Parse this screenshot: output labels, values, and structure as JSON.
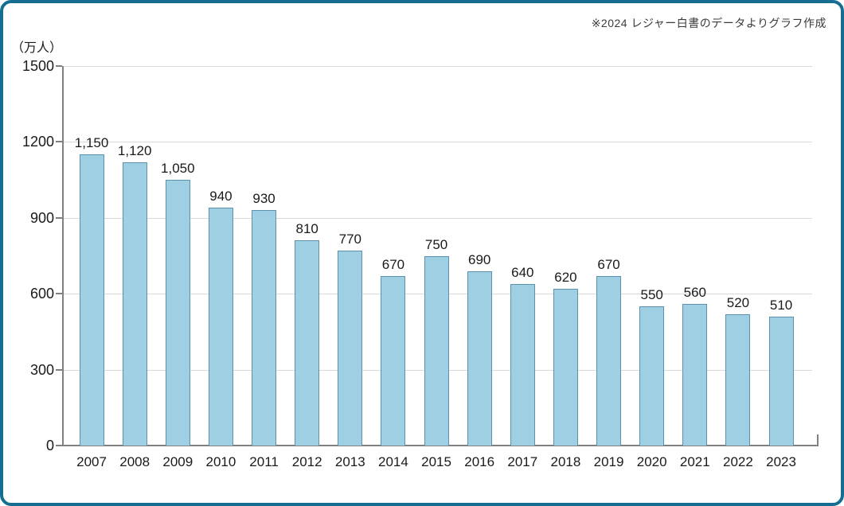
{
  "annotation": "※2024 レジャー白書のデータよりグラフ作成",
  "chart_data": {
    "type": "bar",
    "title": "",
    "unit_label": "（万人）",
    "categories": [
      "2007",
      "2008",
      "2009",
      "2010",
      "2011",
      "2012",
      "2013",
      "2014",
      "2015",
      "2016",
      "2017",
      "2018",
      "2019",
      "2020",
      "2021",
      "2022",
      "2023"
    ],
    "values": [
      1150,
      1120,
      1050,
      940,
      930,
      810,
      770,
      670,
      750,
      690,
      640,
      620,
      670,
      550,
      560,
      520,
      510
    ],
    "value_labels": [
      "1,150",
      "1,120",
      "1,050",
      "940",
      "930",
      "810",
      "770",
      "670",
      "750",
      "690",
      "640",
      "620",
      "670",
      "550",
      "560",
      "520",
      "510"
    ],
    "xlabel": "",
    "ylabel": "（万人）",
    "ylim": [
      0,
      1500
    ],
    "yticks": [
      0,
      300,
      600,
      900,
      1200,
      1500
    ],
    "grid": true,
    "legend": "none",
    "colors": {
      "bar_fill": "#9FCFE3",
      "bar_border": "#5B93AE",
      "gridline": "#D9D9D9",
      "axis": "#808080",
      "frame_border": "#156E92",
      "text": "#1A1A1A"
    }
  }
}
